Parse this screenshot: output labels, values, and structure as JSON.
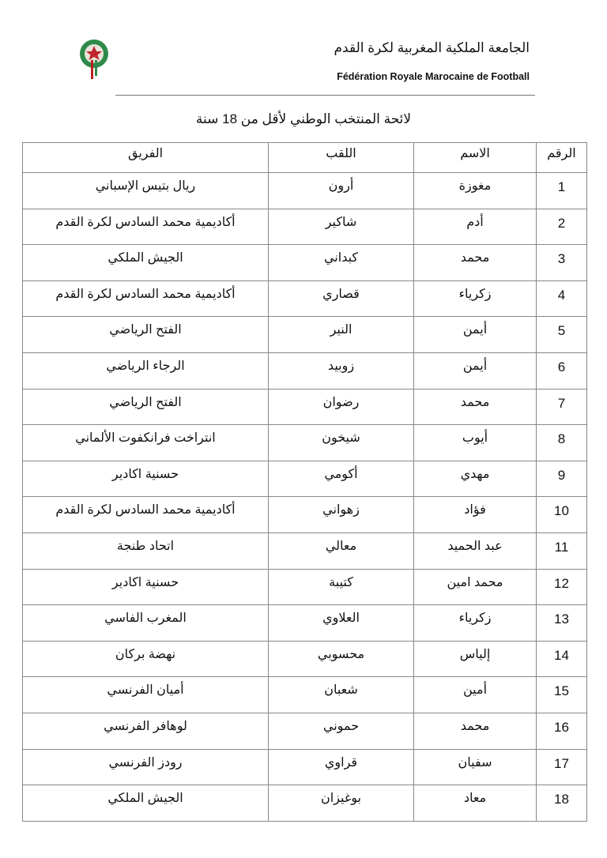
{
  "header": {
    "org_name_ar": "الجامعة الملكية المغربية لكرة القدم",
    "org_name_fr": "Fédération Royale Marocaine de Football",
    "logo": "frmf-crest"
  },
  "document": {
    "title": "لائحة المنتخب الوطني لأقل من 18 سنة"
  },
  "table": {
    "columns": [
      "الرقم",
      "الاسم",
      "اللقب",
      "الفريق"
    ],
    "rows": [
      {
        "num": "1",
        "first": "مغوزة",
        "last": "أرون",
        "team": "ريال بتيس الإسباني"
      },
      {
        "num": "2",
        "first": "أدم",
        "last": "شاكير",
        "team": "أكاديمية محمد السادس لكرة القدم"
      },
      {
        "num": "3",
        "first": "محمد",
        "last": "كبداني",
        "team": "الجيش الملكي"
      },
      {
        "num": "4",
        "first": "زكرياء",
        "last": "قصاري",
        "team": "أكاديمية محمد السادس لكرة القدم"
      },
      {
        "num": "5",
        "first": "أيمن",
        "last": "النير",
        "team": "الفتح الرياضي"
      },
      {
        "num": "6",
        "first": "أيمن",
        "last": "زوبيد",
        "team": "الرجاء الرياضي"
      },
      {
        "num": "7",
        "first": "محمد",
        "last": "رضوان",
        "team": "الفتح الرياضي"
      },
      {
        "num": "8",
        "first": "أيوب",
        "last": "شيخون",
        "team": "انتراخت فرانكفوت الألماني"
      },
      {
        "num": "9",
        "first": "مهدي",
        "last": "أكومي",
        "team": "حسنية اكادير"
      },
      {
        "num": "10",
        "first": "فؤاد",
        "last": "زهواني",
        "team": "أكاديمية محمد السادس لكرة القدم"
      },
      {
        "num": "11",
        "first": "عبد الحميد",
        "last": "معالي",
        "team": "اتحاد طنجة"
      },
      {
        "num": "12",
        "first": "محمد امين",
        "last": "كتيبة",
        "team": "حسنية اكادير"
      },
      {
        "num": "13",
        "first": "زكرياء",
        "last": "العلاوي",
        "team": "المغرب الفاسي"
      },
      {
        "num": "14",
        "first": "إلياس",
        "last": "محسوبي",
        "team": "نهضة بركان"
      },
      {
        "num": "15",
        "first": "أمين",
        "last": "شعبان",
        "team": "أميان الفرنسي"
      },
      {
        "num": "16",
        "first": "محمد",
        "last": "حموني",
        "team": "لوهافر الفرنسي"
      },
      {
        "num": "17",
        "first": "سفيان",
        "last": "قراوي",
        "team": "رودز الفرنسي"
      },
      {
        "num": "18",
        "first": "معاد",
        "last": "بوغيزان",
        "team": "الجيش الملكي"
      }
    ]
  }
}
